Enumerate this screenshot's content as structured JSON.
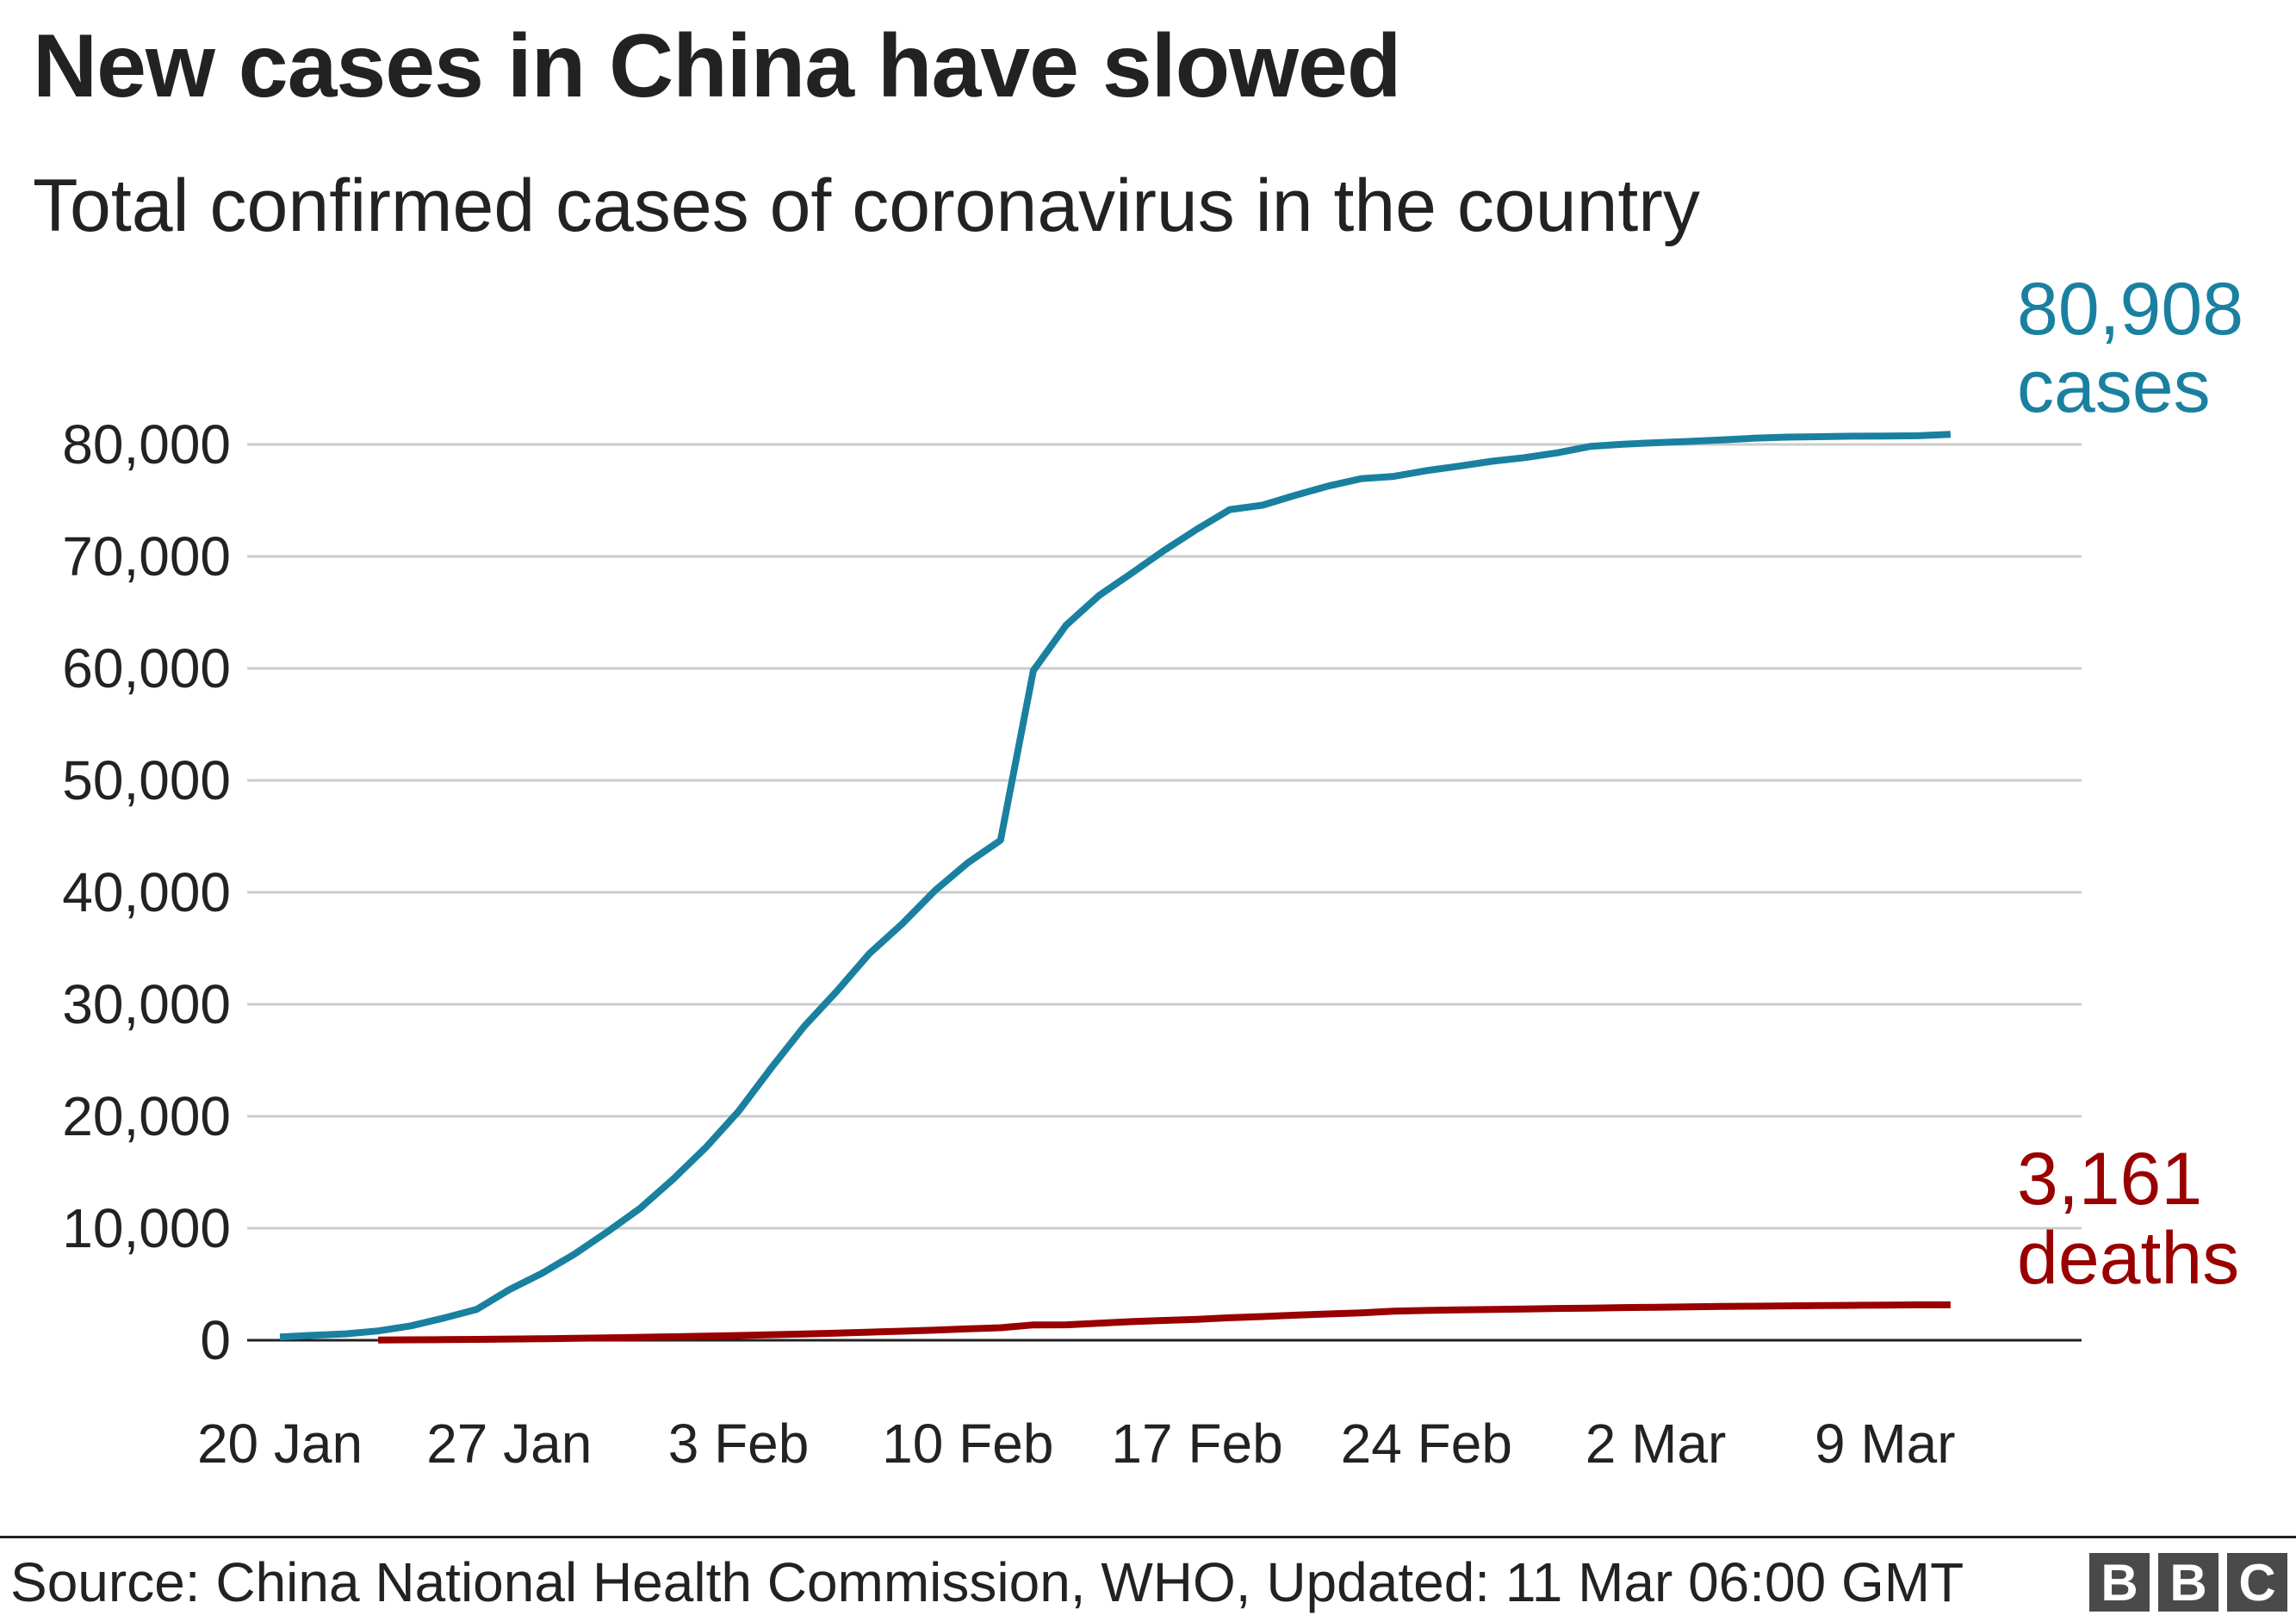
{
  "header": {
    "title": "New cases in China have slowed",
    "subtitle": "Total confirmed cases of coronavirus in the country"
  },
  "footer": {
    "source": "Source: China National Health Commission, WHO, Updated: 11 Mar 06:00 GMT",
    "logo_letters": [
      "B",
      "B",
      "C"
    ]
  },
  "chart_data": {
    "type": "line",
    "title": "New cases in China have slowed",
    "subtitle": "Total confirmed cases of coronavirus in the country",
    "ylim": [
      0,
      80000
    ],
    "yticks": [
      0,
      10000,
      20000,
      30000,
      40000,
      50000,
      60000,
      70000,
      80000
    ],
    "ytick_labels": [
      "0",
      "10,000",
      "20,000",
      "30,000",
      "40,000",
      "50,000",
      "60,000",
      "70,000",
      "80,000"
    ],
    "xlim": [
      "2020-01-19",
      "2020-03-15"
    ],
    "xticks": [
      "2020-01-20",
      "2020-01-27",
      "2020-02-03",
      "2020-02-10",
      "2020-02-17",
      "2020-02-24",
      "2020-03-02",
      "2020-03-09"
    ],
    "xtick_labels": [
      "20 Jan",
      "27 Jan",
      "3 Feb",
      "10 Feb",
      "17 Feb",
      "24 Feb",
      "2 Mar",
      "9 Mar"
    ],
    "grid": true,
    "series": [
      {
        "name": "cases",
        "color": "#1a80a0",
        "end_label_value": "80,908",
        "end_label_unit": "cases",
        "points": [
          [
            "2020-01-20",
            291
          ],
          [
            "2020-01-21",
            440
          ],
          [
            "2020-01-22",
            571
          ],
          [
            "2020-01-23",
            830
          ],
          [
            "2020-01-24",
            1287
          ],
          [
            "2020-01-25",
            1975
          ],
          [
            "2020-01-26",
            2744
          ],
          [
            "2020-01-27",
            4515
          ],
          [
            "2020-01-28",
            5974
          ],
          [
            "2020-01-29",
            7711
          ],
          [
            "2020-01-30",
            9692
          ],
          [
            "2020-01-31",
            11791
          ],
          [
            "2020-02-01",
            14380
          ],
          [
            "2020-02-02",
            17205
          ],
          [
            "2020-02-03",
            20438
          ],
          [
            "2020-02-04",
            24324
          ],
          [
            "2020-02-05",
            28018
          ],
          [
            "2020-02-06",
            31161
          ],
          [
            "2020-02-07",
            34546
          ],
          [
            "2020-02-08",
            37198
          ],
          [
            "2020-02-09",
            40171
          ],
          [
            "2020-02-10",
            42638
          ],
          [
            "2020-02-11",
            44653
          ],
          [
            "2020-02-12",
            59804
          ],
          [
            "2020-02-13",
            63851
          ],
          [
            "2020-02-14",
            66492
          ],
          [
            "2020-02-15",
            68500
          ],
          [
            "2020-02-16",
            70548
          ],
          [
            "2020-02-17",
            72436
          ],
          [
            "2020-02-18",
            74185
          ],
          [
            "2020-02-19",
            74576
          ],
          [
            "2020-02-20",
            75465
          ],
          [
            "2020-02-21",
            76288
          ],
          [
            "2020-02-22",
            76936
          ],
          [
            "2020-02-23",
            77150
          ],
          [
            "2020-02-24",
            77658
          ],
          [
            "2020-02-25",
            78064
          ],
          [
            "2020-02-26",
            78497
          ],
          [
            "2020-02-27",
            78824
          ],
          [
            "2020-02-28",
            79251
          ],
          [
            "2020-02-29",
            79824
          ],
          [
            "2020-03-01",
            80026
          ],
          [
            "2020-03-02",
            80151
          ],
          [
            "2020-03-03",
            80270
          ],
          [
            "2020-03-04",
            80409
          ],
          [
            "2020-03-05",
            80552
          ],
          [
            "2020-03-06",
            80651
          ],
          [
            "2020-03-07",
            80695
          ],
          [
            "2020-03-08",
            80735
          ],
          [
            "2020-03-09",
            80754
          ],
          [
            "2020-03-10",
            80778
          ],
          [
            "2020-03-11",
            80908
          ]
        ]
      },
      {
        "name": "deaths",
        "color": "#990000",
        "end_label_value": "3,161",
        "end_label_unit": "deaths",
        "points": [
          [
            "2020-01-23",
            25
          ],
          [
            "2020-01-24",
            41
          ],
          [
            "2020-01-25",
            56
          ],
          [
            "2020-01-26",
            80
          ],
          [
            "2020-01-27",
            106
          ],
          [
            "2020-01-28",
            132
          ],
          [
            "2020-01-29",
            170
          ],
          [
            "2020-01-30",
            213
          ],
          [
            "2020-01-31",
            259
          ],
          [
            "2020-02-01",
            304
          ],
          [
            "2020-02-02",
            361
          ],
          [
            "2020-02-03",
            425
          ],
          [
            "2020-02-04",
            490
          ],
          [
            "2020-02-05",
            563
          ],
          [
            "2020-02-06",
            636
          ],
          [
            "2020-02-07",
            722
          ],
          [
            "2020-02-08",
            811
          ],
          [
            "2020-02-09",
            908
          ],
          [
            "2020-02-10",
            1016
          ],
          [
            "2020-02-11",
            1113
          ],
          [
            "2020-02-12",
            1367
          ],
          [
            "2020-02-13",
            1380
          ],
          [
            "2020-02-14",
            1523
          ],
          [
            "2020-02-15",
            1665
          ],
          [
            "2020-02-16",
            1770
          ],
          [
            "2020-02-17",
            1868
          ],
          [
            "2020-02-18",
            2004
          ],
          [
            "2020-02-19",
            2118
          ],
          [
            "2020-02-20",
            2236
          ],
          [
            "2020-02-21",
            2345
          ],
          [
            "2020-02-22",
            2442
          ],
          [
            "2020-02-23",
            2592
          ],
          [
            "2020-02-24",
            2663
          ],
          [
            "2020-02-25",
            2715
          ],
          [
            "2020-02-26",
            2744
          ],
          [
            "2020-02-27",
            2788
          ],
          [
            "2020-02-28",
            2835
          ],
          [
            "2020-02-29",
            2870
          ],
          [
            "2020-03-01",
            2912
          ],
          [
            "2020-03-02",
            2943
          ],
          [
            "2020-03-03",
            2981
          ],
          [
            "2020-03-04",
            3012
          ],
          [
            "2020-03-05",
            3042
          ],
          [
            "2020-03-06",
            3070
          ],
          [
            "2020-03-07",
            3097
          ],
          [
            "2020-03-08",
            3119
          ],
          [
            "2020-03-09",
            3136
          ],
          [
            "2020-03-10",
            3158
          ],
          [
            "2020-03-11",
            3161
          ]
        ]
      }
    ]
  }
}
